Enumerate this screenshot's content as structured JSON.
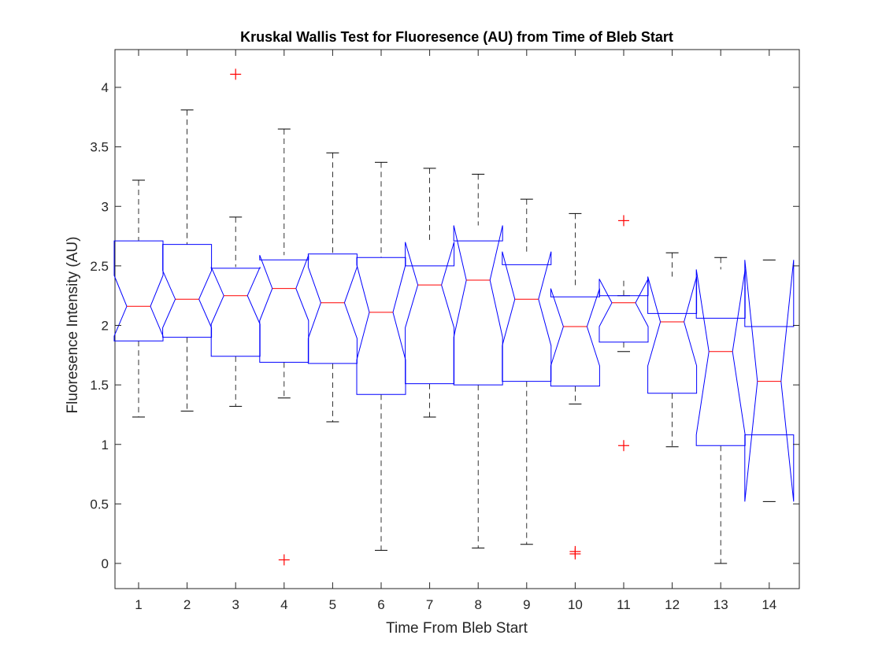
{
  "chart_data": {
    "type": "box",
    "title": "Kruskal Wallis Test for Fluoresence (AU) from Time of Bleb Start",
    "xlabel": "Time From Bleb Start",
    "ylabel": "Fluoresence Intensity (AU)",
    "ylim": [
      -0.2,
      4.3
    ],
    "yticks": [
      0,
      0.5,
      1,
      1.5,
      2,
      2.5,
      3,
      3.5,
      4
    ],
    "ytick_labels": [
      "0",
      "0.5",
      "1",
      "1.5",
      "2",
      "2.5",
      "3",
      "3.5",
      "4"
    ],
    "categories": [
      "1",
      "2",
      "3",
      "4",
      "5",
      "6",
      "7",
      "8",
      "9",
      "10",
      "11",
      "12",
      "13",
      "14"
    ],
    "notched": true,
    "grid": false,
    "colors": {
      "box": "#0000ff",
      "median": "#ff0000",
      "whisker": "#000000",
      "outlier": "#ff0000",
      "axis": "#262626"
    },
    "boxes": [
      {
        "category": "1",
        "whisker_low": 1.23,
        "q1": 1.87,
        "median": 2.16,
        "q3": 2.71,
        "whisker_high": 3.22,
        "notch_low": 1.91,
        "notch_high": 2.42,
        "outliers": []
      },
      {
        "category": "2",
        "whisker_low": 1.28,
        "q1": 1.9,
        "median": 2.22,
        "q3": 2.68,
        "whisker_high": 3.81,
        "notch_low": 1.98,
        "notch_high": 2.46,
        "outliers": []
      },
      {
        "category": "3",
        "whisker_low": 1.32,
        "q1": 1.74,
        "median": 2.25,
        "q3": 2.48,
        "whisker_high": 2.91,
        "notch_low": 2.01,
        "notch_high": 2.49,
        "outliers": [
          4.11
        ]
      },
      {
        "category": "4",
        "whisker_low": 1.39,
        "q1": 1.69,
        "median": 2.31,
        "q3": 2.55,
        "whisker_high": 3.65,
        "notch_low": 2.04,
        "notch_high": 2.59,
        "outliers": [
          0.03
        ]
      },
      {
        "category": "5",
        "whisker_low": 1.19,
        "q1": 1.68,
        "median": 2.19,
        "q3": 2.6,
        "whisker_high": 3.45,
        "notch_low": 1.89,
        "notch_high": 2.49,
        "outliers": []
      },
      {
        "category": "6",
        "whisker_low": 0.11,
        "q1": 1.42,
        "median": 2.11,
        "q3": 2.57,
        "whisker_high": 3.37,
        "notch_low": 1.71,
        "notch_high": 2.51,
        "outliers": []
      },
      {
        "category": "7",
        "whisker_low": 1.23,
        "q1": 1.51,
        "median": 2.34,
        "q3": 2.5,
        "whisker_high": 3.32,
        "notch_low": 1.98,
        "notch_high": 2.7,
        "outliers": []
      },
      {
        "category": "8",
        "whisker_low": 0.13,
        "q1": 1.5,
        "median": 2.38,
        "q3": 2.71,
        "whisker_high": 3.27,
        "notch_low": 1.9,
        "notch_high": 2.84,
        "outliers": []
      },
      {
        "category": "9",
        "whisker_low": 0.16,
        "q1": 1.53,
        "median": 2.22,
        "q3": 2.51,
        "whisker_high": 3.06,
        "notch_low": 1.83,
        "notch_high": 2.62,
        "outliers": []
      },
      {
        "category": "10",
        "whisker_low": 1.34,
        "q1": 1.49,
        "median": 1.99,
        "q3": 2.24,
        "whisker_high": 2.94,
        "notch_low": 1.66,
        "notch_high": 2.31,
        "outliers": [
          0.1,
          0.08
        ]
      },
      {
        "category": "11",
        "whisker_low": 1.78,
        "q1": 1.86,
        "median": 2.19,
        "q3": 2.25,
        "whisker_high": 2.25,
        "notch_low": 1.99,
        "notch_high": 2.39,
        "outliers": [
          2.88,
          0.99
        ]
      },
      {
        "category": "12",
        "whisker_low": 0.98,
        "q1": 1.43,
        "median": 2.03,
        "q3": 2.1,
        "whisker_high": 2.61,
        "notch_low": 1.66,
        "notch_high": 2.41,
        "outliers": []
      },
      {
        "category": "13",
        "whisker_low": 0.0,
        "q1": 0.99,
        "median": 1.78,
        "q3": 2.06,
        "whisker_high": 2.57,
        "notch_low": 1.08,
        "notch_high": 2.47,
        "outliers": []
      },
      {
        "category": "14",
        "whisker_low": 0.52,
        "q1": 1.08,
        "median": 1.53,
        "q3": 1.99,
        "whisker_high": 2.55,
        "notch_low": 0.52,
        "notch_high": 2.55,
        "outliers": []
      }
    ]
  }
}
